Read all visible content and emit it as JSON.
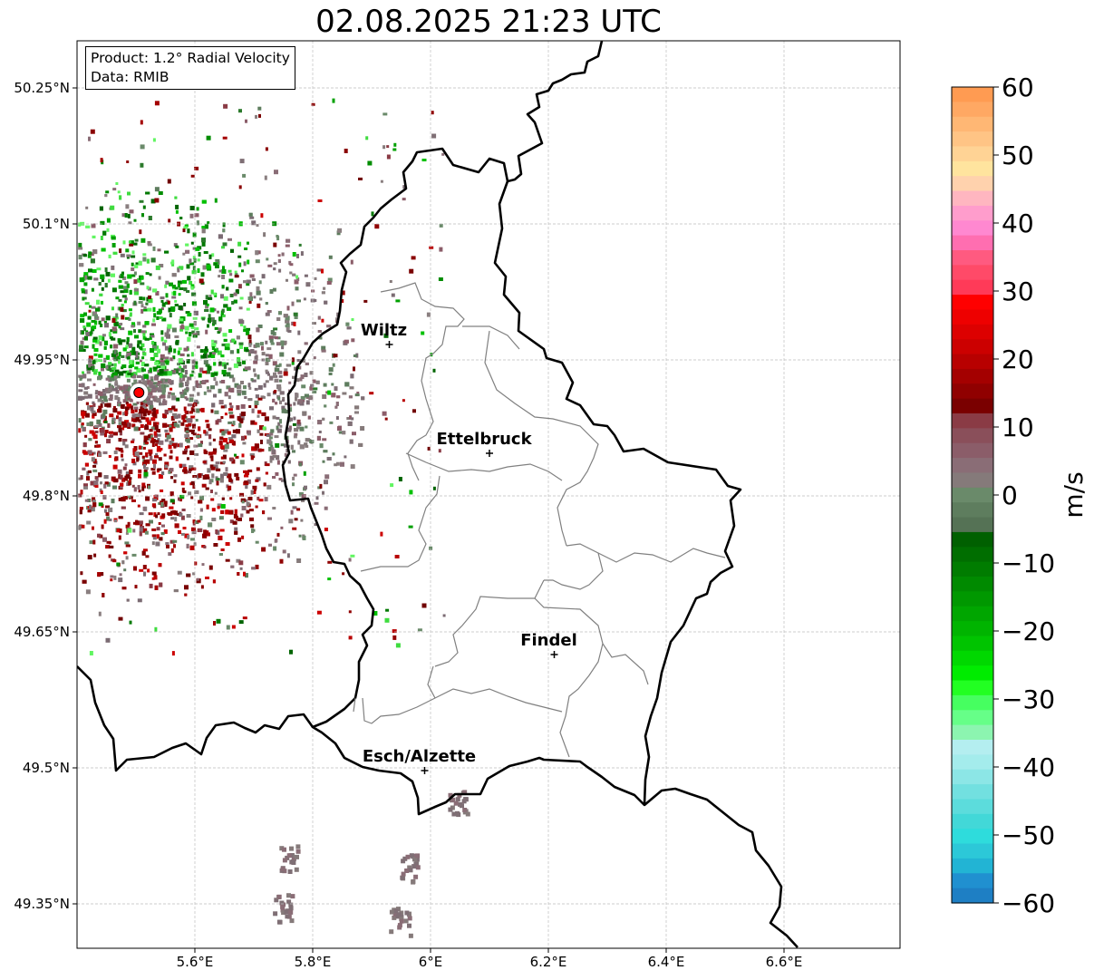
{
  "title": "02.08.2025 21:23 UTC",
  "info_box": {
    "product": "Product: 1.2° Radial Velocity",
    "data": "Data: RMIB"
  },
  "map": {
    "lon_range": [
      5.4,
      6.8
    ],
    "lat_range": [
      49.3,
      50.3
    ],
    "x_ticks": [
      {
        "value": 5.6,
        "label": "5.6°E"
      },
      {
        "value": 5.8,
        "label": "5.8°E"
      },
      {
        "value": 6.0,
        "label": "6°E"
      },
      {
        "value": 6.2,
        "label": "6.2°E"
      },
      {
        "value": 6.4,
        "label": "6.4°E"
      },
      {
        "value": 6.6,
        "label": "6.6°E"
      }
    ],
    "y_ticks": [
      {
        "value": 50.25,
        "label": "50.25°N"
      },
      {
        "value": 50.1,
        "label": "50.1°N"
      },
      {
        "value": 49.95,
        "label": "49.95°N"
      },
      {
        "value": 49.8,
        "label": "49.8°N"
      },
      {
        "value": 49.65,
        "label": "49.65°N"
      },
      {
        "value": 49.5,
        "label": "49.5°N"
      },
      {
        "value": 49.35,
        "label": "49.35°N"
      }
    ],
    "gridlines": true,
    "cities": [
      {
        "name": "Wiltz",
        "lon": 5.93,
        "lat": 49.967
      },
      {
        "name": "Ettelbruck",
        "lon": 6.1,
        "lat": 49.847
      },
      {
        "name": "Findel",
        "lon": 6.21,
        "lat": 49.625
      },
      {
        "name": "Esch/Alzette",
        "lon": 5.99,
        "lat": 49.497
      }
    ],
    "radar_site": {
      "lon": 5.505,
      "lat": 49.914,
      "color": "#ff0000"
    }
  },
  "colorbar": {
    "label": "m/s",
    "min": -60,
    "max": 60,
    "tick_values": [
      60,
      50,
      40,
      30,
      20,
      10,
      0,
      -10,
      -20,
      -30,
      -40,
      -50,
      -60
    ],
    "tick_labels": [
      "60",
      "50",
      "40",
      "30",
      "20",
      "10",
      "0",
      "−10",
      "−20",
      "−30",
      "−40",
      "−50",
      "−60"
    ],
    "colors_top_to_bottom": [
      "#ff9b52",
      "#ffa863",
      "#ffb774",
      "#ffc485",
      "#ffd395",
      "#ffe49e",
      "#ffd2ad",
      "#ffb6c0",
      "#ff9dcc",
      "#ff88d0",
      "#ff6eb0",
      "#ff5a80",
      "#ff4a68",
      "#ff3a58",
      "#ff0000",
      "#ee0000",
      "#dd0000",
      "#cc0000",
      "#b80000",
      "#a40000",
      "#900000",
      "#7a0000",
      "#8a3b45",
      "#8a4f5a",
      "#8b5d69",
      "#8a6d76",
      "#857a7a",
      "#6a8a6a",
      "#5e7d5e",
      "#557255",
      "#006000",
      "#006e00",
      "#007c00",
      "#008a00",
      "#009800",
      "#00a600",
      "#00b400",
      "#00c400",
      "#00d800",
      "#00ec00",
      "#22ff22",
      "#46ff60",
      "#66ff88",
      "#8cf5b0",
      "#b4eef0",
      "#a4ecec",
      "#8ce6e6",
      "#72e0e0",
      "#5cdcdc",
      "#42d8d8",
      "#2edcdc",
      "#2cc8d8",
      "#22b4d4",
      "#2090d0",
      "#1e7fc4"
    ]
  }
}
